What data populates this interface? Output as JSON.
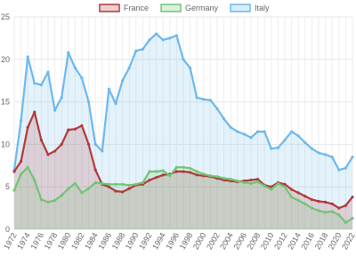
{
  "chart_data": {
    "type": "line",
    "categories": [
      "1972",
      null,
      "1974",
      null,
      "1976",
      null,
      "1978",
      null,
      "1980",
      null,
      "1982",
      null,
      "1984",
      null,
      "1986",
      null,
      "1988",
      null,
      "1990",
      null,
      "1992",
      null,
      "1994",
      null,
      "1996",
      null,
      "1998",
      null,
      "2000",
      null,
      "2002",
      null,
      "2004",
      null,
      "2006",
      null,
      "2008",
      null,
      "2010",
      null,
      "2012",
      null,
      "2014",
      null,
      "2016",
      null,
      "2018",
      null,
      "2020",
      null,
      "2022"
    ],
    "series": [
      {
        "name": "France",
        "color": "#b03a3a",
        "values": [
          6.8,
          8,
          12,
          13.8,
          10.5,
          8.8,
          9.2,
          10,
          11.7,
          11.8,
          12.2,
          10,
          7,
          5.3,
          5,
          4.5,
          4.4,
          4.8,
          5.2,
          5.3,
          5.8,
          6.1,
          6.4,
          6.5,
          6.8,
          6.8,
          6.7,
          6.4,
          6.3,
          6.2,
          6,
          5.8,
          5.7,
          5.6,
          5.7,
          5.8,
          5.9,
          5.2,
          5,
          5.5,
          5.3,
          4.7,
          4.3,
          3.9,
          3.5,
          3.3,
          3.2,
          3,
          2.5,
          2.8,
          3.8
        ]
      },
      {
        "name": "Germany",
        "color": "#72c472",
        "values": [
          4.6,
          6.5,
          7.3,
          5.8,
          3.5,
          3.2,
          3.4,
          4,
          4.8,
          5.4,
          4.3,
          4.8,
          5.5,
          5.4,
          5.3,
          5.3,
          5.3,
          5.2,
          5.3,
          5.5,
          6.8,
          6.8,
          6.9,
          6.3,
          7.3,
          7.3,
          7.2,
          6.8,
          6.5,
          6.3,
          6.2,
          6,
          5.9,
          5.7,
          5.5,
          5.4,
          5.6,
          5.1,
          4.7,
          5.4,
          5,
          3.8,
          3.4,
          3,
          2.5,
          2.2,
          2,
          2.1,
          1.7,
          0.8,
          1.3
        ]
      },
      {
        "name": "Italy",
        "color": "#6cb8ef",
        "values": [
          7,
          12.8,
          20.3,
          17.2,
          17,
          18.5,
          14,
          15.5,
          20.8,
          19,
          17.8,
          15,
          10,
          9.2,
          16.5,
          14.8,
          17.5,
          19,
          21,
          21.2,
          22.3,
          23,
          22.3,
          22.5,
          22.8,
          20,
          19,
          15.5,
          15.3,
          15.2,
          14.2,
          13,
          12,
          11.5,
          11.2,
          10.8,
          11.5,
          11.5,
          9.5,
          9.6,
          10.5,
          11.5,
          11,
          10.2,
          9.5,
          9,
          8.8,
          8.5,
          7,
          7.2,
          8.5
        ]
      }
    ],
    "ylim": [
      0,
      25
    ],
    "yticks": [
      0,
      5,
      10,
      15,
      20,
      25
    ],
    "grid": true
  }
}
